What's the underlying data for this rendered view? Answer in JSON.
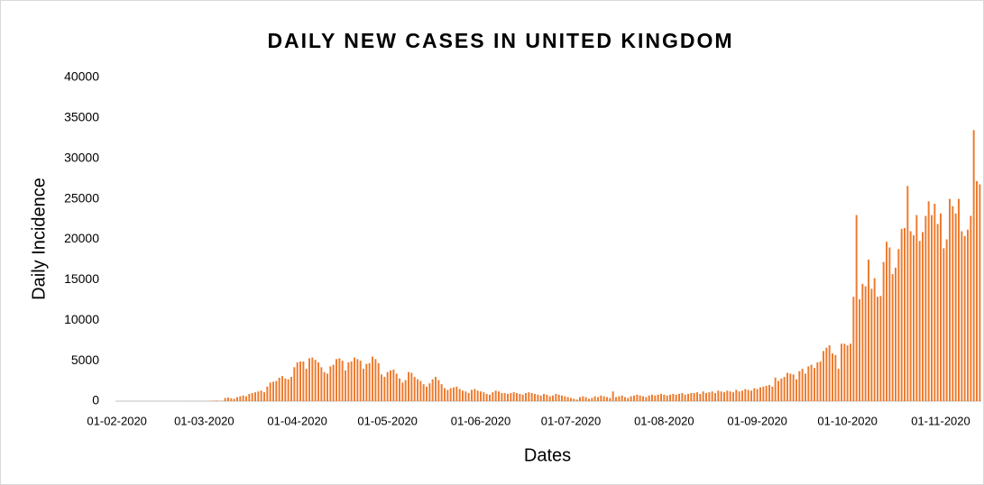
{
  "chart_data": {
    "type": "bar",
    "title": "DAILY NEW CASES IN UNITED KINGDOM",
    "x_label": "Dates",
    "y_label": "Daily Incidence",
    "color": "#ed7d31",
    "categories": [
      "01-02-2020",
      null,
      null,
      null,
      null,
      null,
      null,
      null,
      null,
      null,
      null,
      null,
      null,
      null,
      null,
      null,
      null,
      null,
      null,
      null,
      null,
      null,
      null,
      null,
      null,
      null,
      null,
      null,
      null,
      "01-03-2020",
      null,
      null,
      null,
      null,
      null,
      null,
      null,
      null,
      null,
      null,
      null,
      null,
      null,
      null,
      null,
      null,
      null,
      null,
      null,
      null,
      null,
      null,
      null,
      null,
      null,
      null,
      null,
      null,
      null,
      null,
      "01-04-2020",
      null,
      null,
      null,
      null,
      null,
      null,
      null,
      null,
      null,
      null,
      null,
      null,
      null,
      null,
      null,
      null,
      null,
      null,
      null,
      null,
      null,
      null,
      null,
      null,
      null,
      null,
      null,
      null,
      null,
      "01-05-2020",
      null,
      null,
      null,
      null,
      null,
      null,
      null,
      null,
      null,
      null,
      null,
      null,
      null,
      null,
      null,
      null,
      null,
      null,
      null,
      null,
      null,
      null,
      null,
      null,
      null,
      null,
      null,
      null,
      null,
      null,
      "01-06-2020",
      null,
      null,
      null,
      null,
      null,
      null,
      null,
      null,
      null,
      null,
      null,
      null,
      null,
      null,
      null,
      null,
      null,
      null,
      null,
      null,
      null,
      null,
      null,
      null,
      null,
      null,
      null,
      null,
      null,
      "01-07-2020",
      null,
      null,
      null,
      null,
      null,
      null,
      null,
      null,
      null,
      null,
      null,
      null,
      null,
      null,
      null,
      null,
      null,
      null,
      null,
      null,
      null,
      null,
      null,
      null,
      null,
      null,
      null,
      null,
      null,
      null,
      "01-08-2020",
      null,
      null,
      null,
      null,
      null,
      null,
      null,
      null,
      null,
      null,
      null,
      null,
      null,
      null,
      null,
      null,
      null,
      null,
      null,
      null,
      null,
      null,
      null,
      null,
      null,
      null,
      null,
      null,
      null,
      null,
      "01-09-2020",
      null,
      null,
      null,
      null,
      null,
      null,
      null,
      null,
      null,
      null,
      null,
      null,
      null,
      null,
      null,
      null,
      null,
      null,
      null,
      null,
      null,
      null,
      null,
      null,
      null,
      null,
      null,
      null,
      null,
      "01-10-2020",
      null,
      null,
      null,
      null,
      null,
      null,
      null,
      null,
      null,
      null,
      null,
      null,
      null,
      null,
      null,
      null,
      null,
      null,
      null,
      null,
      null,
      null,
      null,
      null,
      null,
      null,
      null,
      null,
      null,
      null,
      "01-11-2020",
      null,
      null,
      null,
      null,
      null,
      null,
      null,
      null,
      null,
      null,
      null,
      null,
      null
    ],
    "values": [
      0,
      0,
      0,
      0,
      0,
      0,
      0,
      1,
      0,
      0,
      0,
      0,
      0,
      0,
      0,
      0,
      0,
      0,
      0,
      0,
      0,
      0,
      0,
      0,
      3,
      2,
      5,
      3,
      4,
      10,
      20,
      30,
      50,
      80,
      50,
      60,
      400,
      450,
      350,
      300,
      500,
      600,
      700,
      600,
      900,
      1000,
      1100,
      1200,
      1300,
      1100,
      1800,
      2300,
      2400,
      2500,
      2900,
      3100,
      2800,
      2700,
      3000,
      4200,
      4800,
      4900,
      4900,
      4000,
      5300,
      5400,
      5100,
      4800,
      4200,
      3600,
      3400,
      4300,
      4500,
      5200,
      5300,
      5000,
      3800,
      4800,
      4900,
      5400,
      5200,
      5000,
      4000,
      4600,
      4700,
      5500,
      5200,
      4700,
      3300,
      3000,
      3600,
      3800,
      3900,
      3400,
      2800,
      2300,
      2600,
      3600,
      3500,
      3000,
      2700,
      2500,
      2100,
      1800,
      2200,
      2700,
      3000,
      2600,
      2100,
      1600,
      1400,
      1600,
      1700,
      1800,
      1500,
      1300,
      1200,
      1000,
      1400,
      1500,
      1300,
      1200,
      1100,
      900,
      800,
      1100,
      1300,
      1200,
      1000,
      1000,
      900,
      1000,
      1100,
      1000,
      900,
      800,
      1000,
      1100,
      1000,
      900,
      800,
      700,
      900,
      800,
      600,
      700,
      900,
      800,
      700,
      600,
      500,
      400,
      300,
      200,
      500,
      600,
      500,
      300,
      400,
      600,
      500,
      700,
      600,
      500,
      400,
      1200,
      500,
      600,
      700,
      500,
      400,
      600,
      700,
      800,
      700,
      600,
      500,
      700,
      800,
      700,
      800,
      900,
      800,
      700,
      800,
      900,
      800,
      900,
      1000,
      800,
      900,
      1000,
      1000,
      1100,
      900,
      1200,
      1000,
      1100,
      1200,
      1000,
      1300,
      1200,
      1100,
      1300,
      1200,
      1100,
      1400,
      1200,
      1300,
      1500,
      1400,
      1300,
      1600,
      1500,
      1700,
      1800,
      1900,
      2000,
      1800,
      2900,
      2500,
      2800,
      3000,
      3500,
      3400,
      3300,
      2700,
      3700,
      4000,
      3400,
      4300,
      4500,
      4100,
      4800,
      4900,
      6200,
      6600,
      6900,
      5900,
      5700,
      4000,
      7100,
      7100,
      6900,
      7100,
      12900,
      23000,
      12600,
      14500,
      14200,
      17500,
      13900,
      15200,
      12900,
      13000,
      17200,
      19700,
      19000,
      15700,
      16500,
      18800,
      21300,
      21400,
      26600,
      21000,
      20500,
      23000,
      19800,
      20900,
      22900,
      24700,
      23000,
      24400,
      21900,
      23200,
      18900,
      20000,
      25000,
      24100,
      23200,
      25000,
      21000,
      20400,
      21200,
      22900,
      33500,
      27200,
      26800
    ],
    "ylim": [
      0,
      40000
    ],
    "yticks": [
      0,
      5000,
      10000,
      15000,
      20000,
      25000,
      30000,
      35000,
      40000
    ],
    "grid": false
  }
}
